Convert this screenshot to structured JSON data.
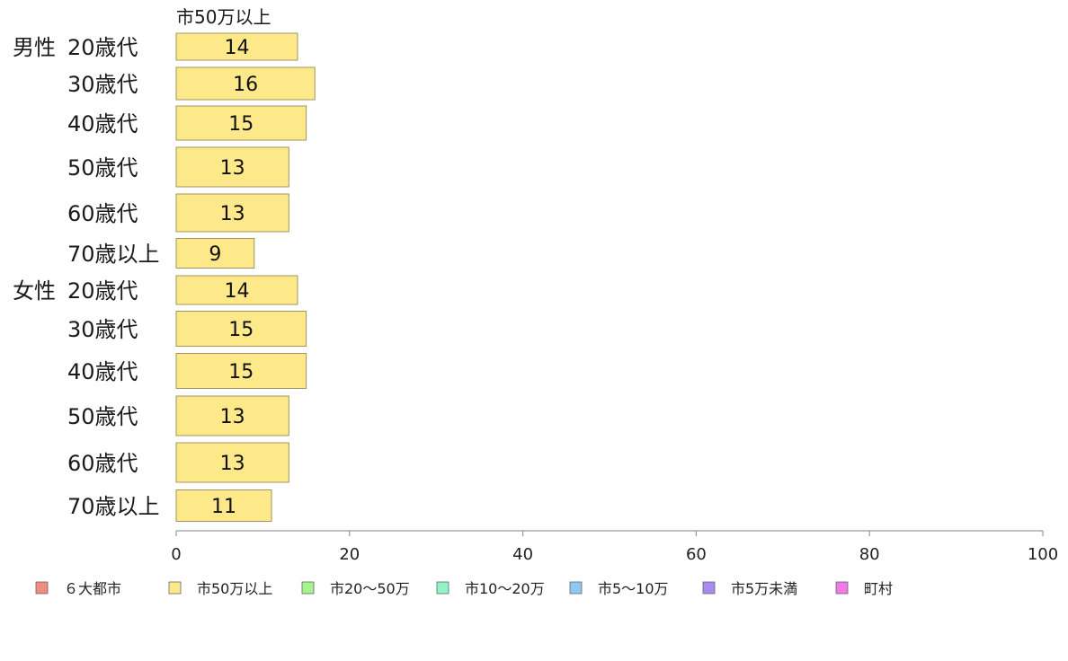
{
  "chart_data": {
    "type": "bar",
    "orientation": "horizontal",
    "series_header": "市50万以上",
    "groups": [
      {
        "label": "男性",
        "categories": [
          "20歳代",
          "30歳代",
          "40歳代",
          "50歳代",
          "60歳代",
          "70歳以上"
        ],
        "values": [
          14,
          16,
          15,
          13,
          13,
          9
        ]
      },
      {
        "label": "女性",
        "categories": [
          "20歳代",
          "30歳代",
          "40歳代",
          "50歳代",
          "60歳代",
          "70歳以上"
        ],
        "values": [
          14,
          15,
          15,
          13,
          13,
          11
        ]
      }
    ],
    "xlim": [
      0,
      100
    ],
    "xticks": [
      "0",
      "20",
      "40",
      "60",
      "80",
      "100"
    ],
    "grid": false,
    "legend_position": "bottom",
    "legend": [
      {
        "name": "６大都市",
        "color": "#f28b82"
      },
      {
        "name": "市50万以上",
        "color": "#fde98a"
      },
      {
        "name": "市20～50万",
        "color": "#a3f58e"
      },
      {
        "name": "市10～20万",
        "color": "#8ff5c6"
      },
      {
        "name": "市5～10万",
        "color": "#8ec8f5"
      },
      {
        "name": "市5万未満",
        "color": "#a88af0"
      },
      {
        "name": "町村",
        "color": "#f07ae6"
      }
    ],
    "bar_color": "#fde98a"
  }
}
